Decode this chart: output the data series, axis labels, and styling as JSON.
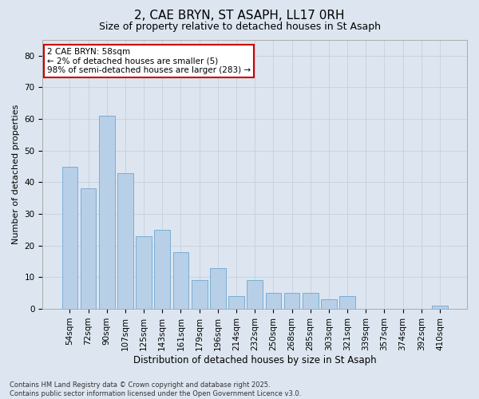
{
  "title1": "2, CAE BRYN, ST ASAPH, LL17 0RH",
  "title2": "Size of property relative to detached houses in St Asaph",
  "xlabel": "Distribution of detached houses by size in St Asaph",
  "ylabel": "Number of detached properties",
  "bar_color": "#b8cfe8",
  "bar_edge_color": "#7aadd4",
  "background_color": "#dde6f0",
  "categories": [
    "54sqm",
    "72sqm",
    "90sqm",
    "107sqm",
    "125sqm",
    "143sqm",
    "161sqm",
    "179sqm",
    "196sqm",
    "214sqm",
    "232sqm",
    "250sqm",
    "268sqm",
    "285sqm",
    "303sqm",
    "321sqm",
    "339sqm",
    "357sqm",
    "374sqm",
    "392sqm",
    "410sqm"
  ],
  "values": [
    45,
    38,
    61,
    43,
    23,
    25,
    18,
    9,
    13,
    4,
    9,
    5,
    5,
    5,
    3,
    4,
    0,
    0,
    0,
    0,
    1
  ],
  "ylim": [
    0,
    85
  ],
  "yticks": [
    0,
    10,
    20,
    30,
    40,
    50,
    60,
    70,
    80
  ],
  "annotation_text": "2 CAE BRYN: 58sqm\n← 2% of detached houses are smaller (5)\n98% of semi-detached houses are larger (283) →",
  "annotation_box_color": "#ffffff",
  "annotation_edge_color": "#cc0000",
  "footer_line1": "Contains HM Land Registry data © Crown copyright and database right 2025.",
  "footer_line2": "Contains public sector information licensed under the Open Government Licence v3.0.",
  "grid_color": "#c5d0e0",
  "title1_fontsize": 11,
  "title2_fontsize": 9,
  "xlabel_fontsize": 8.5,
  "ylabel_fontsize": 8,
  "tick_fontsize": 7.5,
  "annotation_fontsize": 7.5,
  "footer_fontsize": 6
}
